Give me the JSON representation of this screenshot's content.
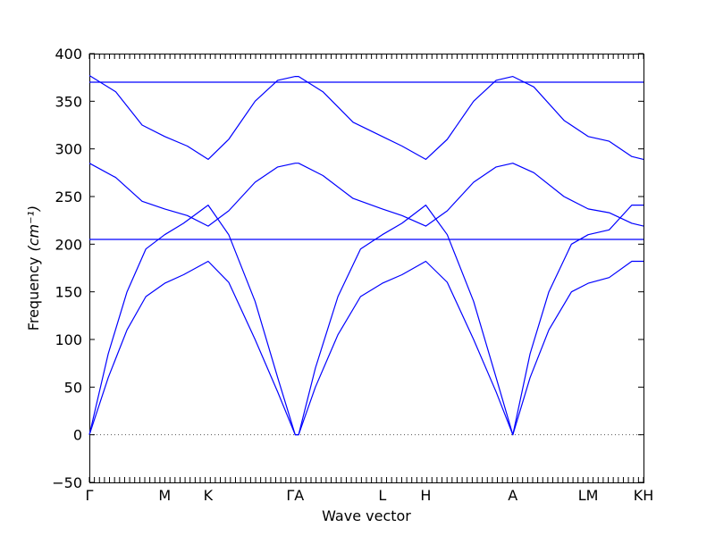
{
  "chart_data": {
    "type": "line",
    "xlabel": "Wave vector",
    "ylabel": "Frequency",
    "ylabel_unit": "(cm⁻¹)",
    "ylim": [
      -50,
      400
    ],
    "yticks": [
      -50,
      0,
      50,
      100,
      150,
      200,
      250,
      300,
      350,
      400
    ],
    "xlim": [
      0,
      7.356
    ],
    "x_ticks": [
      {
        "label": "Γ",
        "x": 0
      },
      {
        "label": "M",
        "x": 1.0
      },
      {
        "label": "K",
        "x": 1.577
      },
      {
        "label": "ΓA",
        "x": 2.732
      },
      {
        "label": "L",
        "x": 3.889
      },
      {
        "label": "H",
        "x": 4.466
      },
      {
        "label": "A",
        "x": 5.621
      },
      {
        "label": "LM",
        "x": 6.621
      },
      {
        "label": "KH",
        "x": 7.356
      }
    ],
    "zero_line": true,
    "series": [
      {
        "color": "#0000ff",
        "values": [
          [
            0,
            0
          ],
          [
            0.25,
            60
          ],
          [
            0.5,
            110
          ],
          [
            0.75,
            145
          ],
          [
            1.0,
            159
          ],
          [
            1.25,
            168
          ],
          [
            1.577,
            182
          ],
          [
            1.85,
            160
          ],
          [
            2.2,
            100
          ],
          [
            2.5,
            45
          ],
          [
            2.732,
            0
          ],
          [
            2.778,
            0
          ],
          [
            3.0,
            50
          ],
          [
            3.3,
            105
          ],
          [
            3.6,
            145
          ],
          [
            3.889,
            159
          ],
          [
            4.15,
            168
          ],
          [
            4.466,
            182
          ],
          [
            4.75,
            160
          ],
          [
            5.1,
            100
          ],
          [
            5.4,
            45
          ],
          [
            5.621,
            0
          ],
          [
            5.85,
            60
          ],
          [
            6.1,
            110
          ],
          [
            6.4,
            150
          ],
          [
            6.621,
            159
          ],
          [
            6.9,
            165
          ],
          [
            7.2,
            182
          ],
          [
            7.356,
            182
          ]
        ]
      },
      {
        "color": "#0000ff",
        "values": [
          [
            0,
            0
          ],
          [
            0.25,
            85
          ],
          [
            0.5,
            150
          ],
          [
            0.75,
            195
          ],
          [
            1.0,
            210
          ],
          [
            1.25,
            222
          ],
          [
            1.577,
            241
          ],
          [
            1.85,
            210
          ],
          [
            2.2,
            140
          ],
          [
            2.5,
            60
          ],
          [
            2.732,
            0
          ],
          [
            2.778,
            0
          ],
          [
            3.0,
            70
          ],
          [
            3.3,
            145
          ],
          [
            3.6,
            195
          ],
          [
            3.889,
            210
          ],
          [
            4.15,
            222
          ],
          [
            4.466,
            241
          ],
          [
            4.75,
            210
          ],
          [
            5.1,
            140
          ],
          [
            5.4,
            60
          ],
          [
            5.621,
            0
          ],
          [
            5.85,
            85
          ],
          [
            6.1,
            150
          ],
          [
            6.4,
            200
          ],
          [
            6.621,
            210
          ],
          [
            6.9,
            215
          ],
          [
            7.2,
            241
          ],
          [
            7.356,
            241
          ]
        ]
      },
      {
        "color": "#0000ff",
        "values": [
          [
            0,
            285
          ],
          [
            0.35,
            270
          ],
          [
            0.7,
            245
          ],
          [
            1.0,
            237
          ],
          [
            1.3,
            230
          ],
          [
            1.577,
            219
          ],
          [
            1.85,
            235
          ],
          [
            2.2,
            265
          ],
          [
            2.5,
            281
          ],
          [
            2.732,
            285
          ],
          [
            2.778,
            285
          ],
          [
            3.1,
            272
          ],
          [
            3.5,
            248
          ],
          [
            3.889,
            237
          ],
          [
            4.15,
            230
          ],
          [
            4.466,
            219
          ],
          [
            4.75,
            235
          ],
          [
            5.1,
            265
          ],
          [
            5.4,
            281
          ],
          [
            5.621,
            285
          ],
          [
            5.9,
            275
          ],
          [
            6.3,
            250
          ],
          [
            6.621,
            237
          ],
          [
            6.9,
            233
          ],
          [
            7.2,
            222
          ],
          [
            7.356,
            219
          ]
        ]
      },
      {
        "color": "#0000ff",
        "values": [
          [
            0,
            205
          ],
          [
            7.356,
            205
          ]
        ]
      },
      {
        "color": "#0000ff",
        "values": [
          [
            0,
            377
          ],
          [
            0.35,
            360
          ],
          [
            0.7,
            325
          ],
          [
            1.0,
            313
          ],
          [
            1.3,
            303
          ],
          [
            1.577,
            289
          ],
          [
            1.85,
            310
          ],
          [
            2.2,
            350
          ],
          [
            2.5,
            372
          ],
          [
            2.732,
            376
          ],
          [
            2.778,
            376
          ],
          [
            3.1,
            360
          ],
          [
            3.5,
            328
          ],
          [
            3.889,
            313
          ],
          [
            4.15,
            303
          ],
          [
            4.466,
            289
          ],
          [
            4.75,
            310
          ],
          [
            5.1,
            350
          ],
          [
            5.4,
            372
          ],
          [
            5.621,
            376
          ],
          [
            5.9,
            365
          ],
          [
            6.3,
            330
          ],
          [
            6.621,
            313
          ],
          [
            6.9,
            308
          ],
          [
            7.2,
            292
          ],
          [
            7.356,
            289
          ]
        ]
      },
      {
        "color": "#0000ff",
        "values": [
          [
            0,
            370
          ],
          [
            7.356,
            370
          ]
        ]
      }
    ]
  }
}
